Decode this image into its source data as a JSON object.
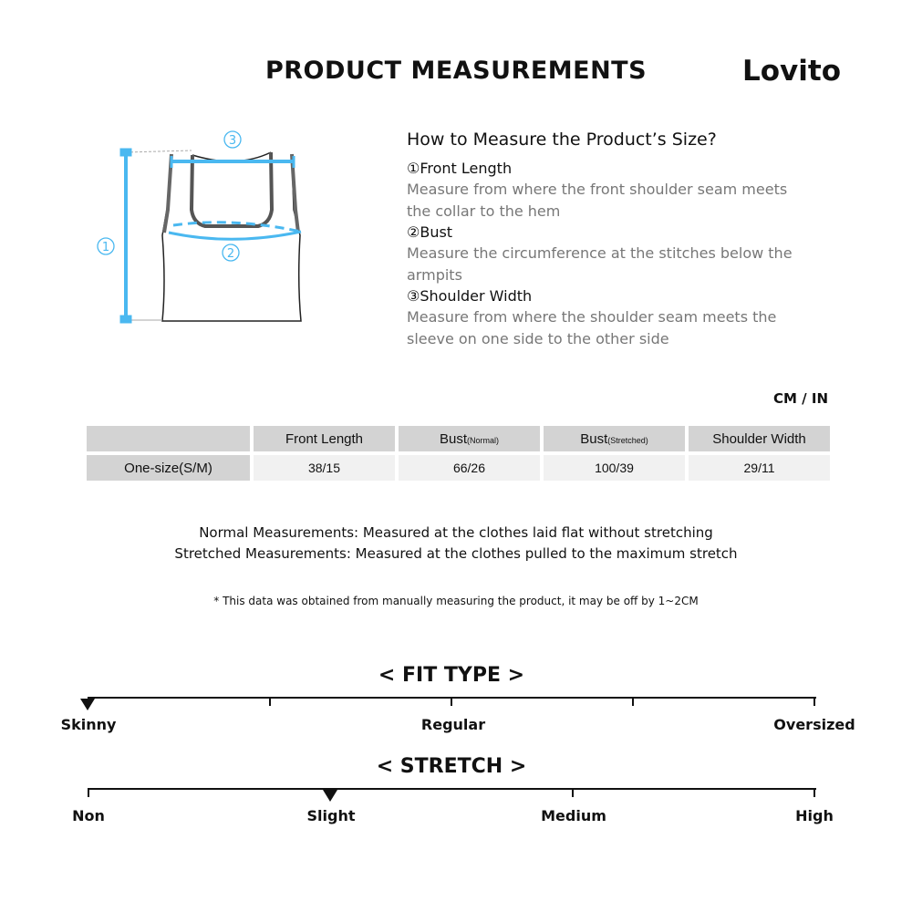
{
  "header": {
    "title": "PRODUCT MEASUREMENTS",
    "logo": "Lovito"
  },
  "diagram": {
    "markers": [
      "①",
      "②",
      "③"
    ],
    "accent": "#4ab8f0"
  },
  "howto": {
    "title": "How to Measure the Product’s Size?",
    "items": [
      {
        "label": "①Front Length",
        "desc": "Measure from where the front shoulder seam meets the collar to the hem"
      },
      {
        "label": "②Bust",
        "desc": "Measure the circumference at the stitches below the armpits"
      },
      {
        "label": "③Shoulder Width",
        "desc": "Measure from where the shoulder seam meets the sleeve on one side to the other side"
      }
    ]
  },
  "table": {
    "unit": "CM / IN",
    "headers": [
      {
        "main": "Front Length",
        "sub": ""
      },
      {
        "main": "Bust",
        "sub": "(Normal)"
      },
      {
        "main": "Bust",
        "sub": "(Stretched)"
      },
      {
        "main": "Shoulder Width",
        "sub": ""
      }
    ],
    "rows": [
      {
        "size": "One-size(S/M)",
        "values": [
          "38/15",
          "66/26",
          "100/39",
          "29/11"
        ]
      }
    ]
  },
  "notes": {
    "normal": "Normal Measurements: Measured at the clothes laid flat without stretching",
    "stretched": "Stretched  Measurements: Measured at the clothes pulled to the maximum stretch",
    "disclaimer": "* This data was obtained from manually measuring the product, it may be off by 1~2CM"
  },
  "fit": {
    "title": "< FIT TYPE >",
    "labels": [
      "Skinny",
      "",
      "Regular",
      "",
      "Oversized"
    ],
    "selected": "Skinny"
  },
  "stretch": {
    "title": "< STRETCH >",
    "labels": [
      "Non",
      "Slight",
      "Medium",
      "High"
    ],
    "selected": "Slight"
  }
}
